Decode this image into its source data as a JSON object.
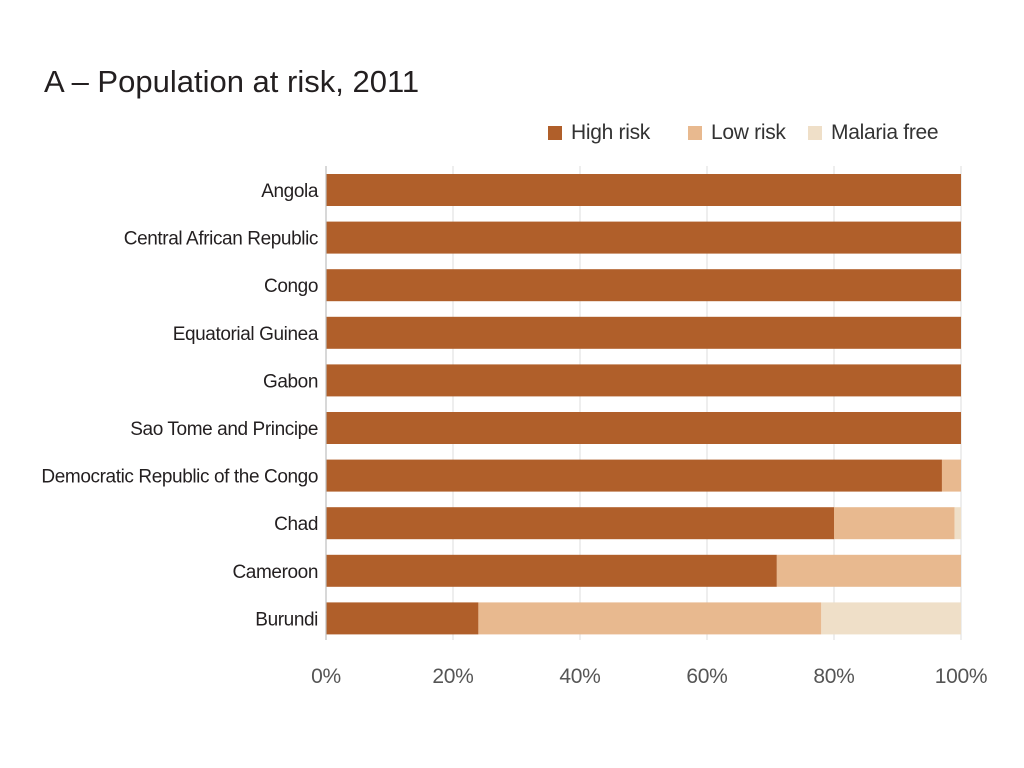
{
  "chart_data": {
    "type": "bar",
    "orientation": "horizontal",
    "stacked": true,
    "title": "A – Population at risk, 2011",
    "categories": [
      "Angola",
      "Central African Republic",
      "Congo",
      "Equatorial Guinea",
      "Gabon",
      "Sao Tome and Principe",
      "Democratic Republic of the Congo",
      "Chad",
      "Cameroon",
      "Burundi"
    ],
    "series": [
      {
        "name": "High risk",
        "color": "#b05f2a",
        "values": [
          100,
          100,
          100,
          100,
          100,
          100,
          97,
          80,
          71,
          24
        ]
      },
      {
        "name": "Low risk",
        "color": "#e8b98f",
        "values": [
          0,
          0,
          0,
          0,
          0,
          0,
          3,
          19,
          29,
          54
        ]
      },
      {
        "name": "Malaria free",
        "color": "#efdfc8",
        "values": [
          0,
          0,
          0,
          0,
          0,
          0,
          0,
          1,
          0,
          22
        ]
      }
    ],
    "xlim": [
      0,
      100
    ],
    "xticks": [
      0,
      20,
      40,
      60,
      80,
      100
    ],
    "xtick_labels": [
      "0%",
      "20%",
      "40%",
      "60%",
      "80%",
      "100%"
    ],
    "xlabel": "",
    "ylabel": "",
    "grid": "vertical",
    "legend_position": "top-right"
  }
}
